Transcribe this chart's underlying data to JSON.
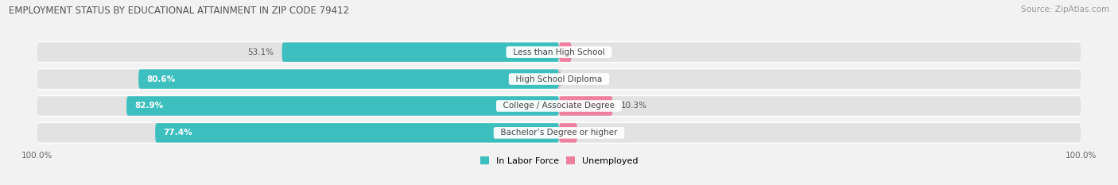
{
  "title": "EMPLOYMENT STATUS BY EDUCATIONAL ATTAINMENT IN ZIP CODE 79412",
  "source": "Source: ZipAtlas.com",
  "categories": [
    "Less than High School",
    "High School Diploma",
    "College / Associate Degree",
    "Bachelor’s Degree or higher"
  ],
  "in_labor_force": [
    53.1,
    80.6,
    82.9,
    77.4
  ],
  "unemployed": [
    2.4,
    0.3,
    10.3,
    3.5
  ],
  "labor_force_color": "#3DBFBF",
  "unemployed_color": "#F080A0",
  "background_color": "#F2F2F2",
  "bar_bg_color": "#E2E2E2",
  "row_bg_color": "#EBEBEB",
  "axis_label": "100.0%",
  "legend_labor": "In Labor Force",
  "legend_unemp": "Unemployed",
  "x_max": 100.0
}
